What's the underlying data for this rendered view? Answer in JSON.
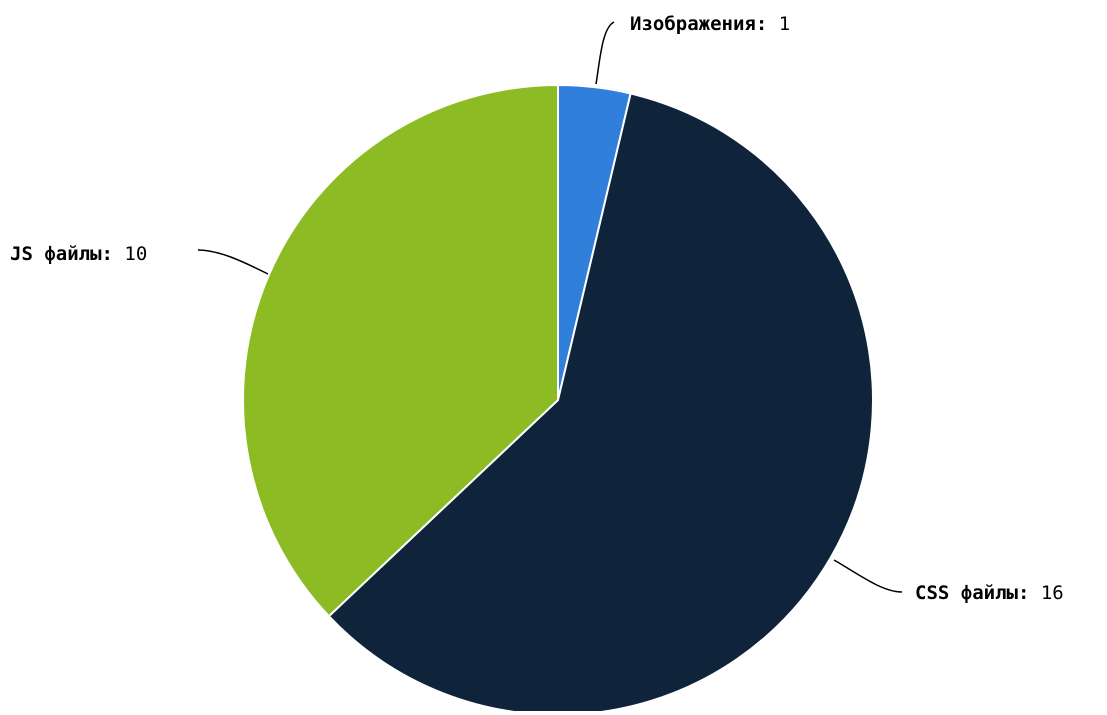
{
  "chart_data": {
    "type": "pie",
    "start_angle_deg": 0,
    "direction": "clockwise",
    "slices": [
      {
        "label": "Изображения",
        "value": 1,
        "color": "#2f7fdb"
      },
      {
        "label": "CSS файлы",
        "value": 16,
        "color": "#0f233b"
      },
      {
        "label": "JS файлы",
        "value": 10,
        "color": "#8cbb23"
      }
    ]
  }
}
